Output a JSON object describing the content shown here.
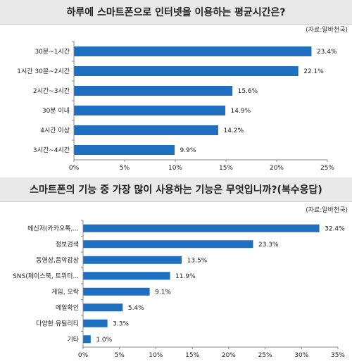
{
  "chart_data": [
    {
      "type": "bar",
      "orientation": "horizontal",
      "title": "하루에 스마트폰으로 인터넷을 이용하는 평균시간은?",
      "source": "(자료:알바천국)",
      "categories": [
        "30분~1시간",
        "1시간 30분~2시간",
        "2시간~3시간",
        "30분 이내",
        "4시간 이상",
        "3시간~4시간"
      ],
      "values": [
        23.4,
        22.1,
        15.6,
        14.9,
        14.2,
        9.9
      ],
      "value_labels": [
        "23.4%",
        "22.1%",
        "15.6%",
        "14.9%",
        "14.2%",
        "9.9%"
      ],
      "xlim": [
        0,
        25
      ],
      "xticks": [
        "0%",
        "5%",
        "10%",
        "15%",
        "20%",
        "25%"
      ],
      "bar_color": "#1f6fc0"
    },
    {
      "type": "bar",
      "orientation": "horizontal",
      "title": "스마트폰의 기능 중 가장 많이 사용하는 기능은 무엇입니까?(복수응답)",
      "source": "(자료:알바천국)",
      "categories": [
        "메신저(카카오톡,...",
        "정보검색",
        "동영상,음악감상",
        "SNS(페이스북, 트위터...",
        "게임, 오락",
        "메일확인",
        "다양한 유틸리티",
        "기타"
      ],
      "values": [
        32.4,
        23.3,
        13.5,
        11.9,
        9.1,
        5.4,
        3.3,
        1.0
      ],
      "value_labels": [
        "32.4%",
        "23.3%",
        "13.5%",
        "11.9%",
        "9.1%",
        "5.4%",
        "3.3%",
        "1.0%"
      ],
      "xlim": [
        0,
        35
      ],
      "xticks": [
        "0%",
        "5%",
        "10%",
        "15%",
        "20%",
        "25%",
        "30%",
        "35%"
      ],
      "bar_color": "#1f6fc0"
    }
  ]
}
